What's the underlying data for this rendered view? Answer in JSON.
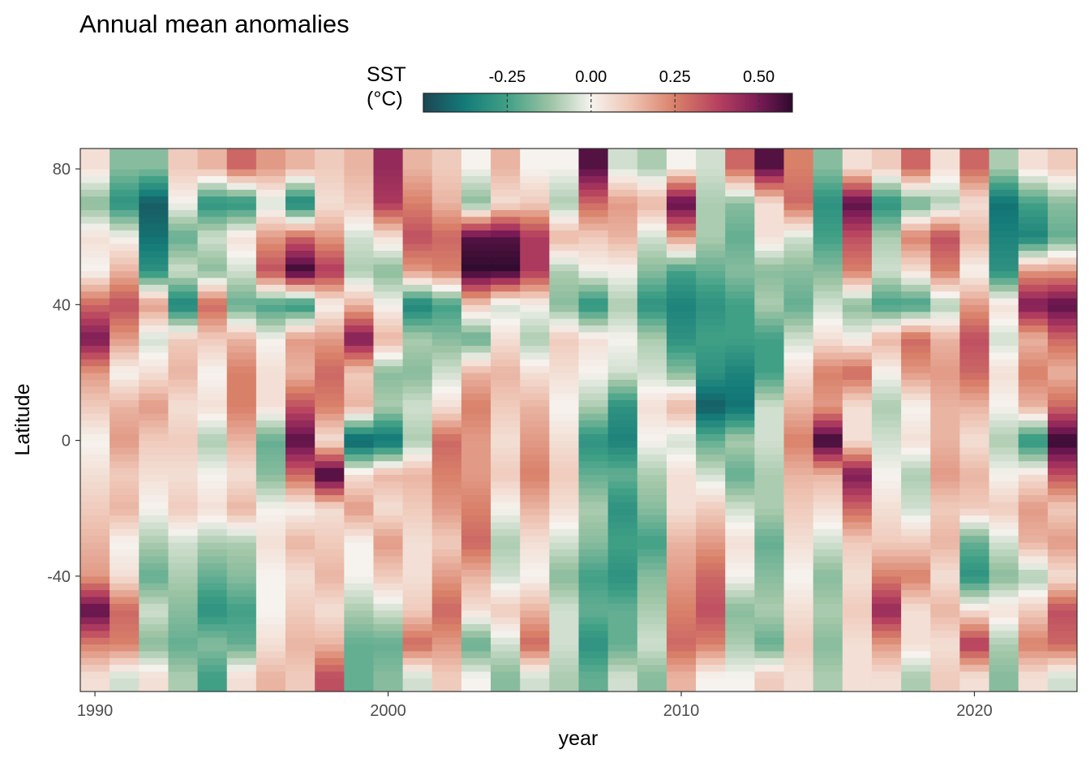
{
  "chart_data": {
    "type": "heatmap",
    "title": "Annual mean anomalies",
    "xlabel": "year",
    "ylabel": "Latitude",
    "xlim": [
      1989.5,
      2023.5
    ],
    "ylim": [
      -74,
      86
    ],
    "x_ticks": [
      1990,
      2000,
      2010,
      2020
    ],
    "x_tick_labels": [
      "1990",
      "2000",
      "2010",
      "2020"
    ],
    "y_ticks": [
      80,
      40,
      0,
      -40
    ],
    "y_tick_labels": [
      "80",
      "40",
      "0",
      "-40"
    ],
    "colorbar": {
      "title_line1": "SST",
      "title_line2": "(°C)",
      "range": [
        -0.5,
        0.6
      ],
      "ticks": [
        -0.25,
        0.0,
        0.25,
        0.5
      ],
      "tick_labels": [
        "-0.25",
        "0.00",
        "0.25",
        "0.50"
      ],
      "stops": [
        {
          "v": -0.5,
          "color": "#1c4654"
        },
        {
          "v": -0.38,
          "color": "#137a78"
        },
        {
          "v": -0.25,
          "color": "#40a086"
        },
        {
          "v": -0.12,
          "color": "#9dc4a5"
        },
        {
          "v": 0.0,
          "color": "#f6f3ee"
        },
        {
          "v": 0.12,
          "color": "#eec3b3"
        },
        {
          "v": 0.25,
          "color": "#d98069"
        },
        {
          "v": 0.38,
          "color": "#b6405f"
        },
        {
          "v": 0.5,
          "color": "#7a1b56"
        },
        {
          "v": 0.6,
          "color": "#2e0a2e"
        }
      ]
    },
    "legend_position": "top-center",
    "grid": false,
    "latitude_bands": [
      -74,
      -65,
      -55,
      -45,
      -35,
      -25,
      -15,
      -5,
      5,
      15,
      25,
      35,
      45,
      55,
      65,
      75,
      86
    ],
    "years": [
      1990,
      1991,
      1992,
      1993,
      1994,
      1995,
      1996,
      1997,
      1998,
      1999,
      2000,
      2001,
      2002,
      2003,
      2004,
      2005,
      2006,
      2007,
      2008,
      2009,
      2010,
      2011,
      2012,
      2013,
      2014,
      2015,
      2016,
      2017,
      2018,
      2019,
      2020,
      2021,
      2022,
      2023
    ],
    "values": [
      [
        0.05,
        0.25,
        0.55,
        0.2,
        0.15,
        0.1,
        0.05,
        0.0,
        0.1,
        0.2,
        0.5,
        0.3,
        0.0,
        0.05,
        -0.15,
        0.05
      ],
      [
        -0.05,
        0.25,
        0.3,
        0.05,
        0.0,
        0.15,
        0.1,
        0.2,
        0.15,
        0.0,
        0.2,
        0.35,
        0.15,
        0.0,
        -0.3,
        -0.15
      ],
      [
        0.05,
        -0.15,
        -0.05,
        -0.2,
        -0.1,
        0.0,
        0.05,
        0.1,
        0.2,
        0.05,
        -0.05,
        0.2,
        -0.3,
        -0.4,
        -0.45,
        -0.15
      ],
      [
        -0.1,
        -0.2,
        -0.15,
        -0.1,
        -0.05,
        0.1,
        0.05,
        0.1,
        0.05,
        0.15,
        0.1,
        -0.35,
        -0.05,
        -0.2,
        0.0,
        0.1
      ],
      [
        -0.25,
        -0.15,
        -0.3,
        -0.2,
        -0.1,
        0.05,
        0.0,
        -0.1,
        0.05,
        0.0,
        0.1,
        0.3,
        -0.15,
        -0.05,
        -0.3,
        0.15
      ],
      [
        0.05,
        -0.2,
        -0.25,
        -0.15,
        -0.1,
        0.15,
        0.05,
        0.15,
        0.25,
        0.25,
        0.15,
        -0.2,
        -0.05,
        0.05,
        -0.3,
        0.3
      ],
      [
        0.15,
        0.05,
        0.0,
        0.0,
        0.05,
        0.0,
        -0.15,
        -0.2,
        0.05,
        0.05,
        0.0,
        -0.25,
        0.35,
        0.2,
        -0.05,
        0.2
      ],
      [
        0.1,
        0.15,
        0.1,
        0.05,
        0.15,
        0.0,
        0.3,
        0.55,
        0.35,
        0.15,
        0.2,
        -0.3,
        0.6,
        0.3,
        -0.35,
        0.15
      ],
      [
        0.35,
        0.15,
        0.05,
        0.15,
        0.1,
        0.05,
        0.6,
        0.05,
        0.25,
        0.3,
        0.2,
        0.0,
        0.4,
        0.2,
        0.05,
        0.1
      ],
      [
        -0.2,
        -0.2,
        -0.1,
        0.0,
        0.0,
        0.2,
        0.05,
        -0.45,
        0.15,
        0.1,
        0.5,
        0.15,
        -0.1,
        -0.05,
        0.1,
        0.15
      ],
      [
        -0.15,
        -0.2,
        -0.05,
        0.1,
        0.2,
        0.05,
        0.15,
        -0.4,
        -0.1,
        -0.15,
        0.15,
        0.0,
        -0.15,
        0.05,
        0.4,
        0.45
      ],
      [
        -0.05,
        0.3,
        0.1,
        0.05,
        0.05,
        0.1,
        0.15,
        -0.1,
        -0.05,
        -0.15,
        -0.1,
        -0.35,
        0.2,
        0.35,
        0.25,
        0.15
      ],
      [
        0.1,
        0.2,
        0.3,
        0.2,
        0.1,
        0.2,
        0.25,
        0.3,
        0.05,
        -0.05,
        -0.15,
        -0.25,
        0.25,
        0.3,
        0.15,
        0.1
      ],
      [
        0.0,
        -0.2,
        0.05,
        0.15,
        0.3,
        0.25,
        0.2,
        0.2,
        0.25,
        0.15,
        -0.2,
        0.1,
        0.6,
        0.55,
        -0.15,
        0.0
      ],
      [
        -0.15,
        -0.05,
        0.1,
        -0.05,
        -0.1,
        0.0,
        0.1,
        0.05,
        0.1,
        0.15,
        0.05,
        -0.05,
        0.6,
        0.55,
        0.05,
        0.15
      ],
      [
        -0.05,
        0.3,
        0.15,
        0.0,
        0.05,
        0.15,
        0.25,
        0.2,
        0.15,
        0.05,
        -0.1,
        0.0,
        0.4,
        0.4,
        0.1,
        0.0
      ],
      [
        -0.1,
        -0.05,
        -0.05,
        -0.15,
        -0.05,
        0.05,
        0.1,
        0.05,
        0.0,
        0.05,
        0.1,
        -0.15,
        -0.1,
        0.15,
        -0.1,
        0.0
      ],
      [
        -0.2,
        -0.3,
        -0.2,
        -0.25,
        -0.15,
        -0.1,
        -0.2,
        -0.3,
        -0.1,
        0.0,
        0.05,
        -0.3,
        0.0,
        0.1,
        0.3,
        0.55
      ],
      [
        -0.05,
        -0.2,
        -0.2,
        -0.3,
        -0.25,
        -0.3,
        -0.2,
        -0.35,
        -0.3,
        -0.05,
        0.0,
        -0.1,
        0.0,
        0.15,
        0.2,
        -0.05
      ],
      [
        -0.15,
        -0.05,
        -0.1,
        -0.15,
        -0.25,
        -0.15,
        -0.1,
        0.0,
        0.05,
        -0.05,
        -0.1,
        -0.3,
        -0.15,
        -0.05,
        0.15,
        -0.1
      ],
      [
        0.15,
        0.3,
        0.25,
        0.2,
        0.15,
        0.05,
        0.05,
        -0.05,
        0.15,
        -0.15,
        -0.3,
        -0.35,
        -0.25,
        0.2,
        0.55,
        0.0
      ],
      [
        0.0,
        0.25,
        0.35,
        0.3,
        0.2,
        0.1,
        -0.05,
        -0.2,
        -0.45,
        -0.3,
        -0.25,
        -0.3,
        -0.2,
        -0.1,
        -0.1,
        -0.05
      ],
      [
        0.0,
        -0.1,
        -0.15,
        0.0,
        0.05,
        -0.05,
        -0.2,
        -0.1,
        -0.4,
        -0.35,
        -0.25,
        -0.25,
        -0.15,
        -0.2,
        -0.15,
        0.3
      ],
      [
        0.1,
        -0.2,
        -0.1,
        -0.15,
        -0.2,
        -0.1,
        -0.1,
        -0.05,
        -0.05,
        -0.25,
        -0.25,
        -0.1,
        -0.15,
        0.05,
        0.05,
        0.55
      ],
      [
        0.05,
        0.1,
        0.05,
        0.0,
        0.05,
        0.1,
        0.15,
        0.25,
        0.15,
        0.05,
        -0.05,
        -0.2,
        -0.15,
        -0.05,
        0.3,
        0.25
      ],
      [
        -0.1,
        -0.15,
        -0.1,
        -0.15,
        -0.05,
        0.05,
        0.15,
        0.6,
        0.2,
        0.25,
        0.05,
        -0.05,
        -0.15,
        -0.25,
        -0.3,
        -0.15
      ],
      [
        0.05,
        0.05,
        0.1,
        0.05,
        0.1,
        0.3,
        0.5,
        0.05,
        0.05,
        0.3,
        0.0,
        -0.15,
        0.25,
        0.35,
        0.55,
        0.05
      ],
      [
        0.05,
        0.2,
        0.45,
        0.25,
        0.1,
        0.05,
        0.0,
        -0.05,
        -0.1,
        0.0,
        0.15,
        -0.25,
        -0.05,
        -0.1,
        -0.3,
        0.1
      ],
      [
        -0.1,
        0.05,
        0.05,
        0.25,
        0.1,
        -0.05,
        -0.1,
        0.05,
        0.0,
        0.2,
        0.3,
        -0.25,
        0.05,
        0.25,
        -0.2,
        0.3
      ],
      [
        0.1,
        0.05,
        0.15,
        0.05,
        0.15,
        0.1,
        0.2,
        0.15,
        0.15,
        0.2,
        0.15,
        -0.1,
        0.25,
        0.35,
        -0.1,
        0.05
      ],
      [
        0.05,
        0.4,
        0.05,
        -0.3,
        -0.2,
        0.1,
        0.15,
        0.05,
        0.15,
        0.3,
        0.35,
        0.2,
        0.0,
        0.15,
        0.05,
        0.3
      ],
      [
        -0.15,
        -0.1,
        0.05,
        -0.15,
        -0.05,
        0.1,
        0.0,
        -0.1,
        0.0,
        0.05,
        -0.05,
        0.05,
        -0.3,
        -0.35,
        -0.4,
        -0.1
      ],
      [
        0.05,
        0.25,
        0.1,
        -0.1,
        0.15,
        0.2,
        0.05,
        -0.3,
        0.15,
        0.25,
        0.15,
        0.5,
        0.2,
        -0.35,
        -0.25,
        0.05
      ],
      [
        -0.05,
        0.3,
        0.35,
        0.05,
        0.2,
        0.1,
        0.35,
        0.6,
        0.3,
        0.15,
        0.3,
        0.55,
        0.2,
        -0.2,
        -0.15,
        0.1
      ]
    ]
  }
}
